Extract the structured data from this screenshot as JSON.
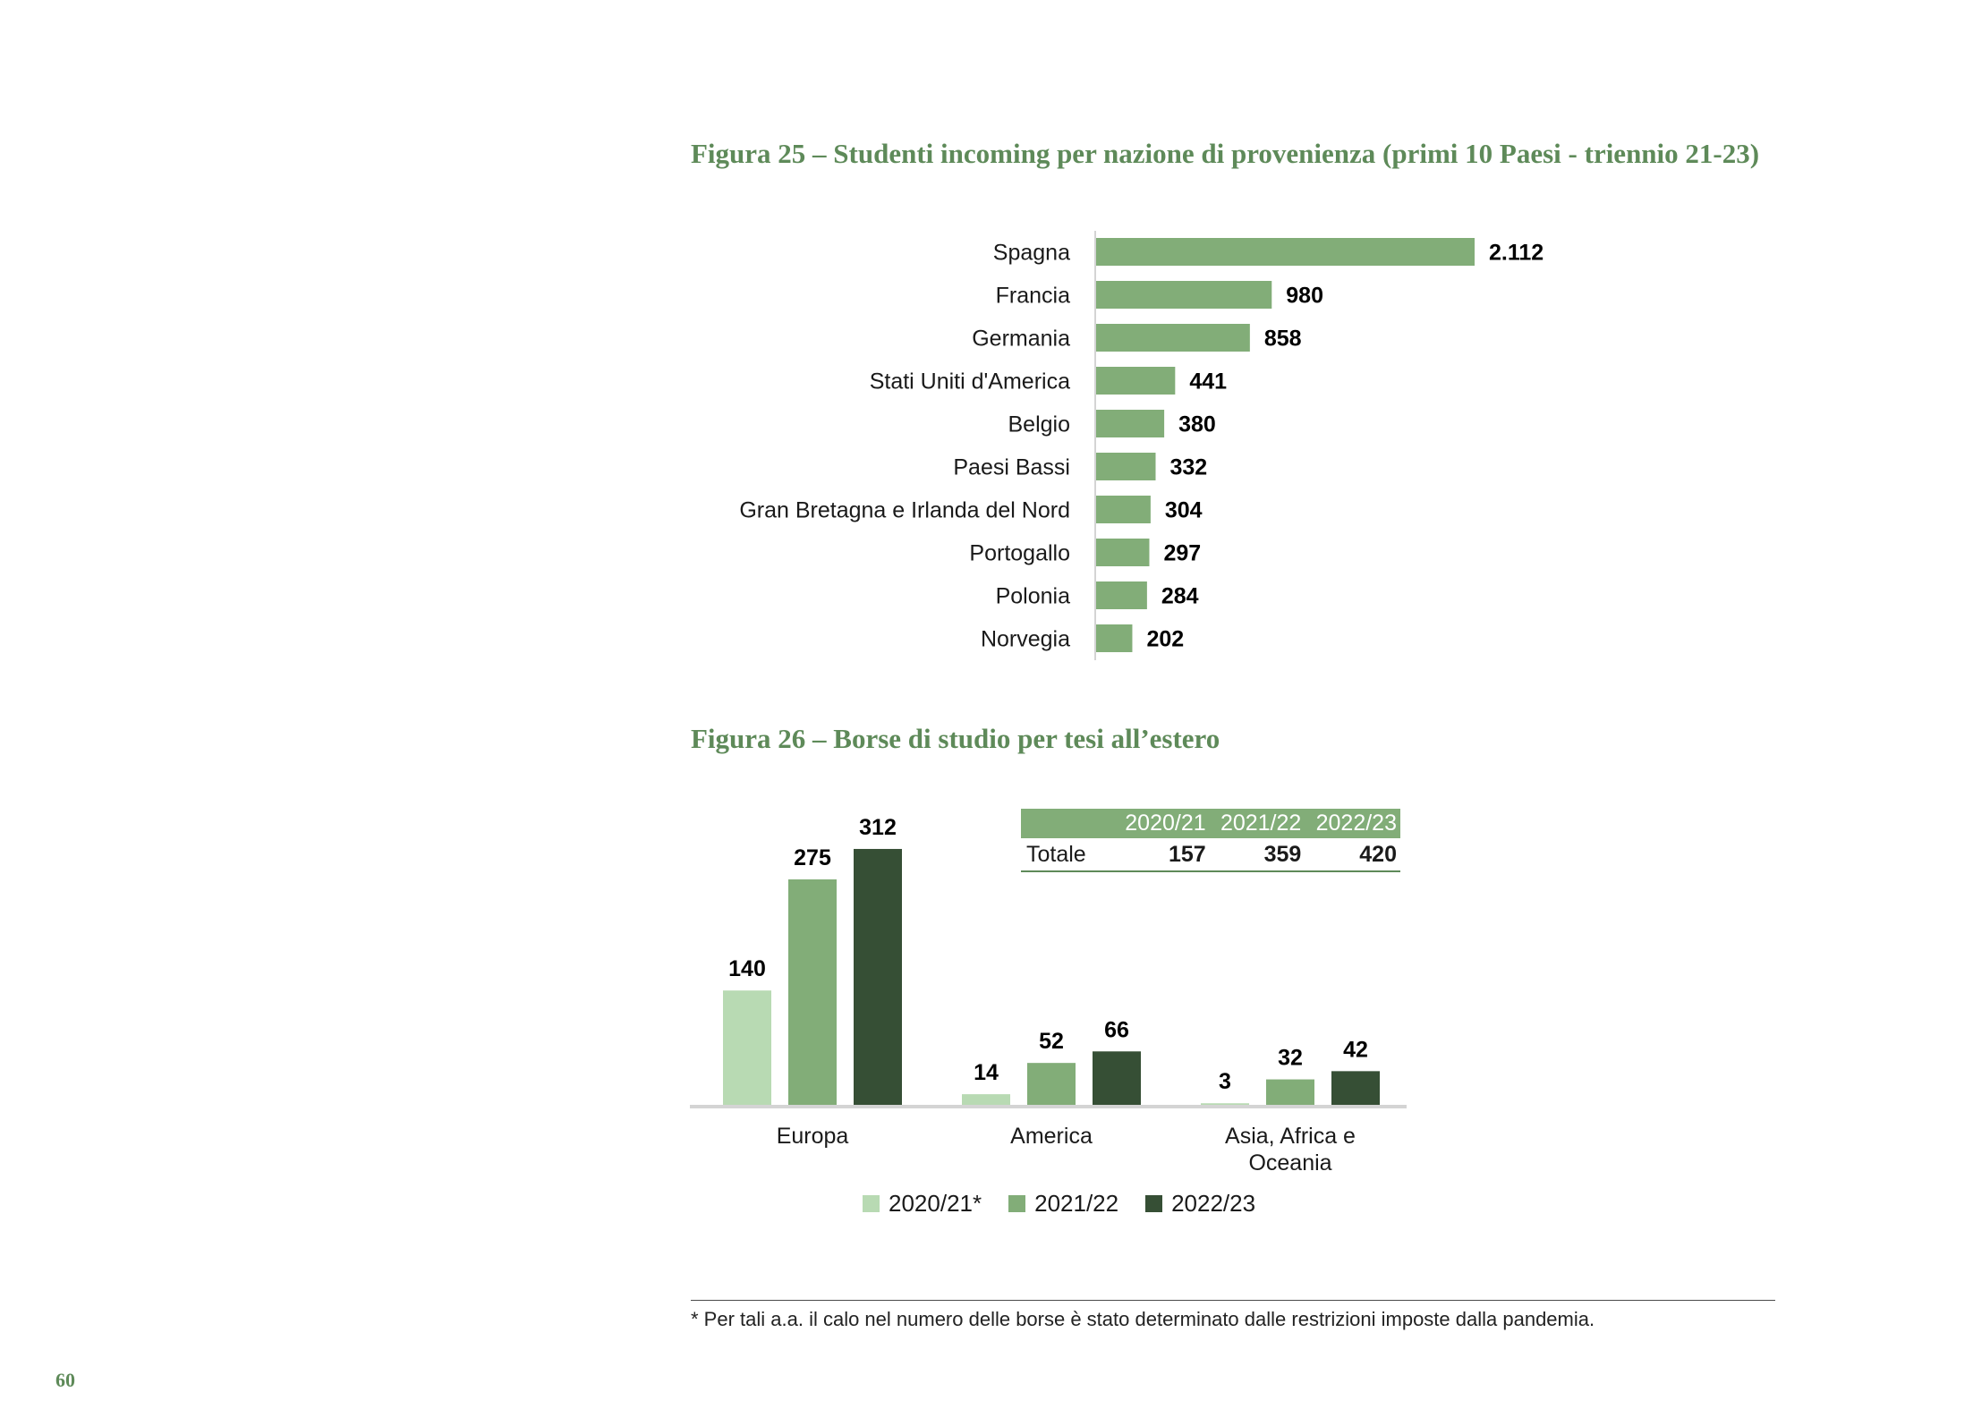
{
  "colors": {
    "title_green": "#5e8a59",
    "bar_green": "#82ad78",
    "series_light": "#b8dab3",
    "series_mid": "#82ad78",
    "series_dark": "#364f35"
  },
  "page_number": "60",
  "footnote": "* Per tali a.a. il calo nel numero delle borse è stato determinato dalle restrizioni imposte dalla pandemia.",
  "figures": {
    "fig25_title": "Figura 25 – Studenti incoming per nazione di provenienza (primi 10 Paesi - triennio 21-23)",
    "fig26_title": "Figura 26 – Borse di studio per tesi all’estero"
  },
  "totals_table": {
    "headers": [
      "",
      "2020/21",
      "2021/22",
      "2022/23"
    ],
    "row_label": "Totale",
    "values": [
      "157",
      "359",
      "420"
    ]
  },
  "chart_data": [
    {
      "type": "bar",
      "orientation": "horizontal",
      "categories": [
        "Spagna",
        "Francia",
        "Germania",
        "Stati Uniti d'America",
        "Belgio",
        "Paesi Bassi",
        "Gran Bretagna e Irlanda del Nord",
        "Portogallo",
        "Polonia",
        "Norvegia"
      ],
      "values": [
        2112,
        980,
        858,
        441,
        380,
        332,
        304,
        297,
        284,
        202
      ],
      "value_labels": [
        "2.112",
        "980",
        "858",
        "441",
        "380",
        "332",
        "304",
        "297",
        "284",
        "202"
      ],
      "grid": false
    },
    {
      "type": "bar",
      "orientation": "vertical",
      "categories": [
        "Europa",
        "America",
        "Asia, Africa e Oceania"
      ],
      "series": [
        {
          "name": "2020/21*",
          "values": [
            140,
            14,
            3
          ]
        },
        {
          "name": "2021/22",
          "values": [
            275,
            52,
            32
          ]
        },
        {
          "name": "2022/23",
          "values": [
            312,
            66,
            42
          ]
        }
      ],
      "legend": "bottom",
      "grid": false
    }
  ]
}
